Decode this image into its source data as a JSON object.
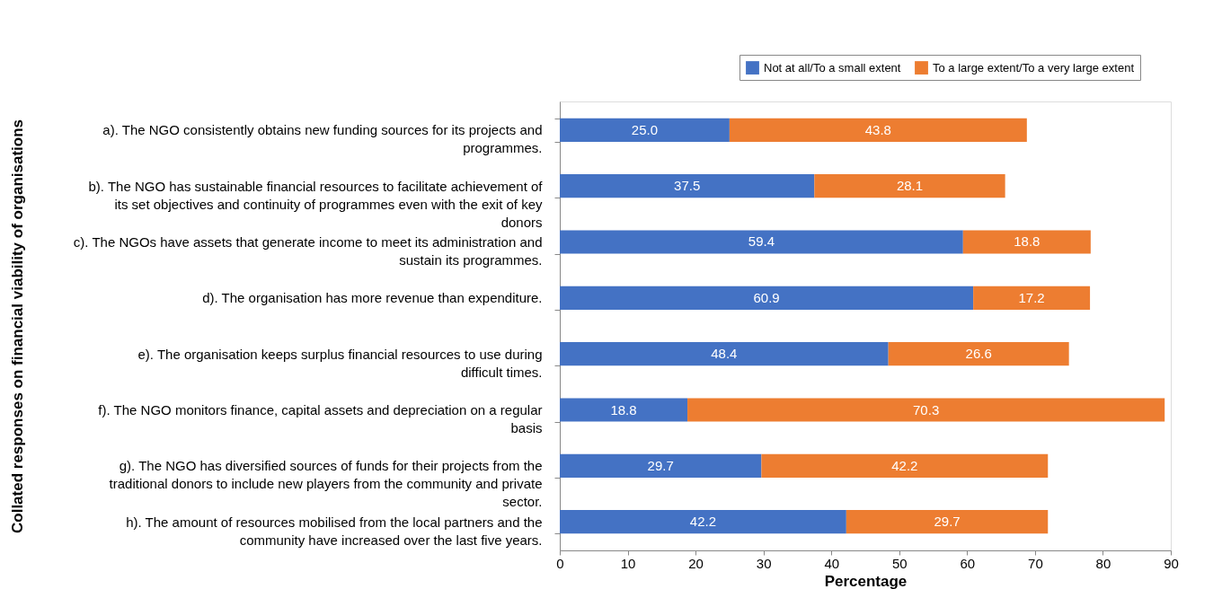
{
  "chart_data": {
    "type": "bar",
    "orientation": "horizontal",
    "stacked": true,
    "ylabel": "Collated responses on financial viability of organisations",
    "xlabel": "Percentage",
    "categories": [
      "a). The NGO consistently obtains new funding sources for its projects and programmes.",
      "b). The NGO has sustainable financial resources to facilitate achievement of its set objectives and continuity of programmes even with the exit of key donors",
      "c). The NGOs have assets that generate income to meet its administration and sustain its programmes.",
      "d). The organisation has more revenue than expenditure.",
      "e). The organisation keeps surplus financial resources to use during difficult times.",
      "f). The NGO monitors finance, capital assets and depreciation on a regular basis",
      "g). The NGO has diversified sources of funds for their projects from the traditional donors to include new players from the community and private sector.",
      "h). The amount of resources mobilised from the local partners and the community have increased over the last five years."
    ],
    "series": [
      {
        "name": "Not at all/To a small extent",
        "color": "#4472c4",
        "values": [
          25.0,
          37.5,
          59.4,
          60.9,
          48.4,
          18.8,
          29.7,
          42.2
        ],
        "value_labels": [
          "25.0",
          "37.5",
          "59.4",
          "60.9",
          "48.4",
          "18.8",
          "29.7",
          "42.2"
        ]
      },
      {
        "name": "To a large extent/To a very large extent",
        "color": "#ed7d31",
        "values": [
          43.8,
          28.1,
          18.8,
          17.2,
          26.6,
          70.3,
          42.2,
          29.7
        ],
        "value_labels": [
          "43.8",
          "28.1",
          "18.8",
          "17.2",
          "26.6",
          "70.3",
          "42.2",
          "29.7"
        ]
      }
    ],
    "xlim": [
      0,
      90
    ],
    "xticks": [
      0,
      10,
      20,
      30,
      40,
      50,
      60,
      70,
      80,
      90
    ],
    "legend": "top right",
    "grid": false
  }
}
